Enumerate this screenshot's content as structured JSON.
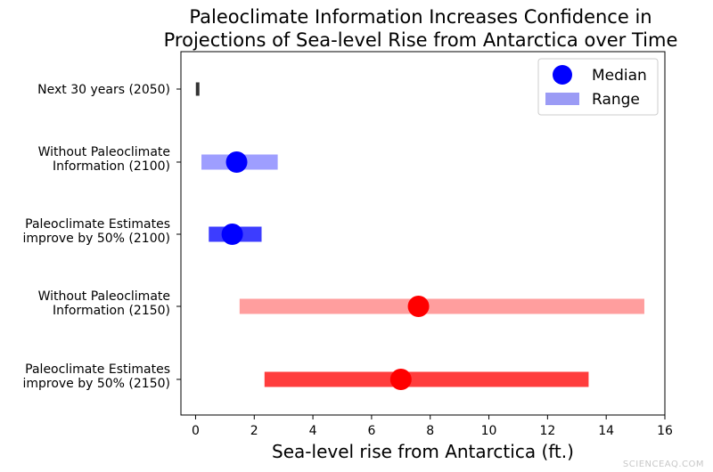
{
  "chart_data": {
    "type": "range",
    "title_lines": [
      "Paleoclimate Information Increases Confidence in",
      "Projections of Sea-level Rise from Antarctica over Time"
    ],
    "xlabel": "Sea-level rise from Antarctica (ft.)",
    "xlim": [
      -0.5,
      16
    ],
    "xticks": [
      0,
      2,
      4,
      6,
      8,
      10,
      12,
      14,
      16
    ],
    "grid": false,
    "categories": [
      {
        "label_lines": [
          "Next 30 years (2050)"
        ],
        "range": [
          0,
          0.1
        ],
        "median": null,
        "range_color": "#333333",
        "range_opacity": 1,
        "median_color": null
      },
      {
        "label_lines": [
          "Without Paleoclimate",
          "Information (2100)"
        ],
        "range": [
          0.2,
          2.8
        ],
        "median": 1.4,
        "range_color": "#0000ff",
        "range_opacity": 0.38,
        "median_color": "#0000ff"
      },
      {
        "label_lines": [
          "Paleoclimate Estimates",
          "improve by 50% (2100)"
        ],
        "range": [
          0.45,
          2.25
        ],
        "median": 1.25,
        "range_color": "#0000ff",
        "range_opacity": 0.76,
        "median_color": "#0000ff"
      },
      {
        "label_lines": [
          "Without Paleoclimate",
          "Information (2150)"
        ],
        "range": [
          1.5,
          15.3
        ],
        "median": 7.6,
        "range_color": "#ff0000",
        "range_opacity": 0.38,
        "median_color": "#ff0000"
      },
      {
        "label_lines": [
          "Paleoclimate Estimates",
          "improve by 50% (2150)"
        ],
        "range": [
          2.35,
          13.4
        ],
        "median": 7.0,
        "range_color": "#ff0000",
        "range_opacity": 0.76,
        "median_color": "#ff0000"
      }
    ],
    "legend": {
      "position": "top-right",
      "items": [
        {
          "label": "Median",
          "marker": "circle",
          "color": "#0000ff"
        },
        {
          "label": "Range",
          "marker": "bar",
          "color": "#9b9bf5"
        }
      ]
    }
  },
  "watermark": "SCIENCEAQ.COM"
}
